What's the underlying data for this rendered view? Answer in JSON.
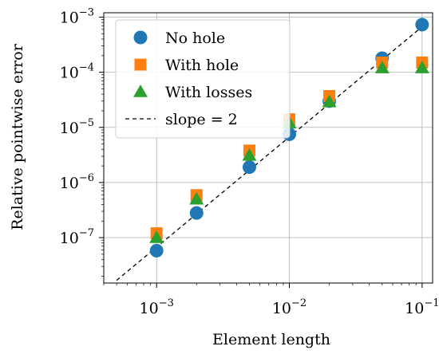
{
  "chart_data": {
    "type": "scatter",
    "xscale": "log",
    "yscale": "log",
    "xlabel": "Element length",
    "ylabel": "Relative pointwise error",
    "xlim": [
      0.0004,
      0.12
    ],
    "ylim": [
      1.5e-08,
      0.0012
    ],
    "grid": true,
    "legend_position": "top-left",
    "xticks": [
      {
        "value": 0.001,
        "base": "10",
        "exp": "−3"
      },
      {
        "value": 0.01,
        "base": "10",
        "exp": "−2"
      },
      {
        "value": 0.1,
        "base": "10",
        "exp": "−1"
      }
    ],
    "yticks": [
      {
        "value": 1e-07,
        "base": "10",
        "exp": "−7"
      },
      {
        "value": 1e-06,
        "base": "10",
        "exp": "−6"
      },
      {
        "value": 1e-05,
        "base": "10",
        "exp": "−5"
      },
      {
        "value": 0.0001,
        "base": "10",
        "exp": "−4"
      },
      {
        "value": 0.001,
        "base": "10",
        "exp": "−3"
      }
    ],
    "x": [
      0.001,
      0.002,
      0.005,
      0.01,
      0.02,
      0.05,
      0.1
    ],
    "series": [
      {
        "name": "No hole",
        "marker": "circle",
        "color": "#1f77b4",
        "values": [
          5.8e-08,
          2.8e-07,
          1.9e-06,
          7.5e-06,
          3e-05,
          0.00018,
          0.00073
        ]
      },
      {
        "name": "With hole",
        "marker": "square",
        "color": "#ff7f0e",
        "values": [
          1.2e-07,
          5.9e-07,
          3.8e-06,
          1.4e-05,
          3.7e-05,
          0.00015,
          0.00015
        ]
      },
      {
        "name": "With losses",
        "marker": "triangle",
        "color": "#2ca02c",
        "values": [
          1e-07,
          5e-07,
          3.1e-06,
          1.2e-05,
          2.9e-05,
          0.00012,
          0.00012
        ]
      }
    ],
    "reference_line": {
      "name": "slope = 2",
      "style": "dashed",
      "color": "#000000",
      "x": [
        0.0005,
        0.1
      ],
      "y": [
        1.68e-08,
        0.00067
      ]
    }
  }
}
